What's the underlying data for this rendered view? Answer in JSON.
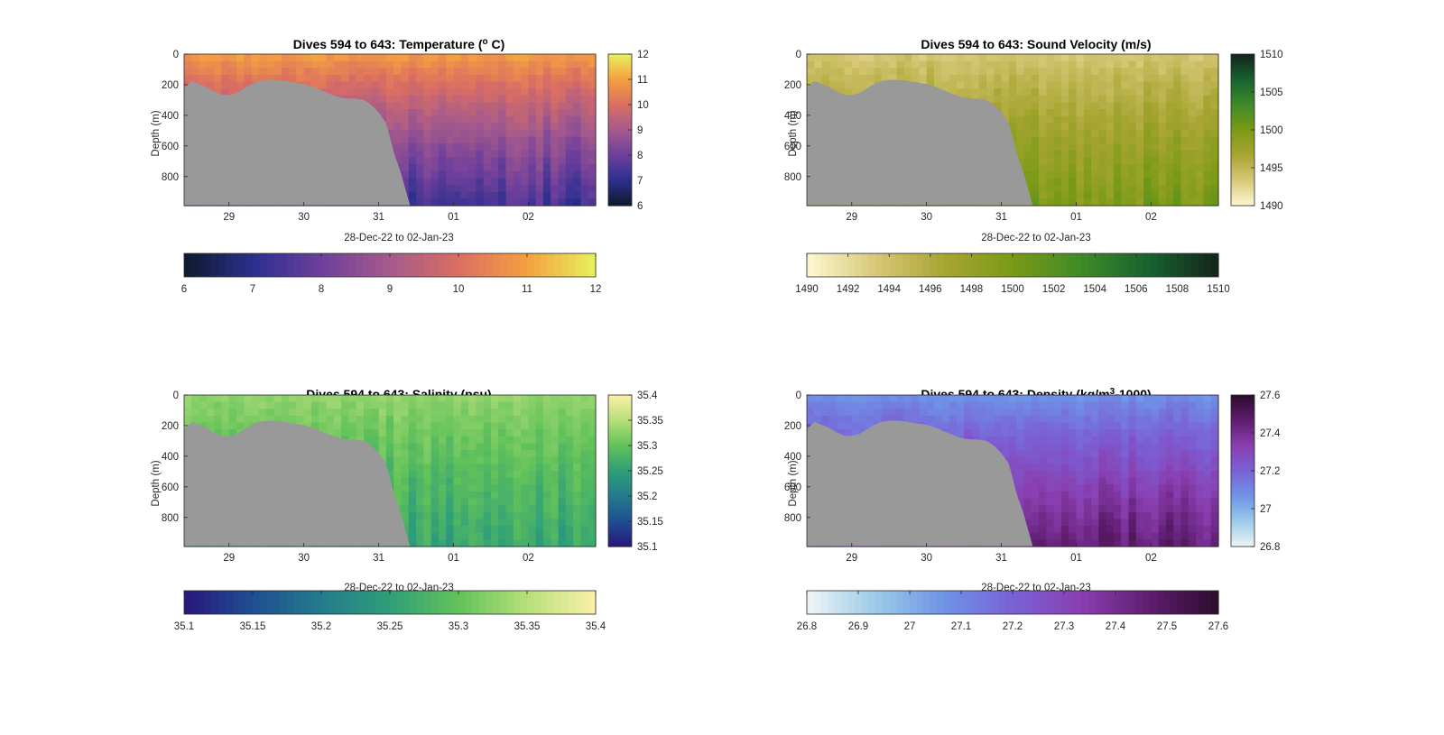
{
  "figure": {
    "colors": {
      "background": "#ffffff",
      "land_mask": "#999999",
      "axis": "#262626"
    }
  },
  "chart_data": [
    {
      "type": "heatmap",
      "title": "Dives 594 to 643: Temperature (",
      "title_sup": "o",
      "title_end": " C)",
      "xlabel": "28-Dec-22 to 02-Jan-23",
      "ylabel": "Depth (m)",
      "x_ticklabels": [
        "29",
        "30",
        "31",
        "01",
        "02"
      ],
      "x_tick_days": [
        29,
        30,
        31,
        32,
        33
      ],
      "xlim_days": [
        28.4,
        33.9
      ],
      "y_ticklabels": [
        "0",
        "200",
        "400",
        "600",
        "800"
      ],
      "y_ticks": [
        0,
        200,
        400,
        600,
        800
      ],
      "ylim": [
        0,
        990
      ],
      "y_reversed": true,
      "colorbar_side": {
        "ticklabels": [
          "12",
          "11",
          "10",
          "9",
          "8",
          "7",
          "6"
        ],
        "ticks": [
          12,
          11,
          10,
          9,
          8,
          7,
          6
        ],
        "range": [
          6,
          12
        ]
      },
      "colorbar_bottom": {
        "ticklabels": [
          "6",
          "7",
          "8",
          "9",
          "10",
          "11",
          "12"
        ],
        "ticks": [
          6,
          7,
          8,
          9,
          10,
          11,
          12
        ],
        "range": [
          6,
          12
        ]
      },
      "colormap": [
        "#0e1a2c",
        "#2b2f8e",
        "#6e3f9c",
        "#a55a8c",
        "#db6e62",
        "#f4a040",
        "#e6f25c"
      ],
      "surface_value": 11.0,
      "deep_value": 7.3,
      "field_description_only_in_script": false
    },
    {
      "type": "heatmap",
      "title": "Dives 594 to 643: Sound Velocity (m/s)",
      "title_sup": "",
      "title_end": "",
      "xlabel": "28-Dec-22 to 02-Jan-23",
      "ylabel": "Depth (m)",
      "x_ticklabels": [
        "29",
        "30",
        "31",
        "01",
        "02"
      ],
      "x_tick_days": [
        29,
        30,
        31,
        32,
        33
      ],
      "xlim_days": [
        28.4,
        33.9
      ],
      "y_ticklabels": [
        "0",
        "200",
        "400",
        "600",
        "800"
      ],
      "y_ticks": [
        0,
        200,
        400,
        600,
        800
      ],
      "ylim": [
        0,
        990
      ],
      "y_reversed": true,
      "colorbar_side": {
        "ticklabels": [
          "1510",
          "1505",
          "1500",
          "1495",
          "1490"
        ],
        "ticks": [
          1510,
          1505,
          1500,
          1495,
          1490
        ],
        "range": [
          1490,
          1510
        ]
      },
      "colorbar_bottom": {
        "ticklabels": [
          "1490",
          "1492",
          "1494",
          "1496",
          "1498",
          "1500",
          "1502",
          "1504",
          "1506",
          "1508",
          "1510"
        ],
        "ticks": [
          1490,
          1492,
          1494,
          1496,
          1498,
          1500,
          1502,
          1504,
          1506,
          1508,
          1510
        ],
        "range": [
          1490,
          1510
        ]
      },
      "colormap": [
        "#fdf8d2",
        "#d8c878",
        "#a8a532",
        "#7a9a16",
        "#3f8a28",
        "#17622f",
        "#14241a"
      ],
      "surface_value": 1493.5,
      "deep_value": 1499.8,
      "field_description_only_in_script": false
    },
    {
      "type": "heatmap",
      "title": "Dives 594 to 643: Salinity (psu)",
      "title_sup": "",
      "title_end": "",
      "xlabel": "28-Dec-22 to 02-Jan-23",
      "ylabel": "Depth (m)",
      "x_ticklabels": [
        "29",
        "30",
        "31",
        "01",
        "02"
      ],
      "x_tick_days": [
        29,
        30,
        31,
        32,
        33
      ],
      "xlim_days": [
        28.4,
        33.9
      ],
      "y_ticklabels": [
        "0",
        "200",
        "400",
        "600",
        "800"
      ],
      "y_ticks": [
        0,
        200,
        400,
        600,
        800
      ],
      "ylim": [
        0,
        990
      ],
      "y_reversed": true,
      "colorbar_side": {
        "ticklabels": [
          "35.4",
          "35.35",
          "35.3",
          "35.25",
          "35.2",
          "35.15",
          "35.1"
        ],
        "ticks": [
          35.4,
          35.35,
          35.3,
          35.25,
          35.2,
          35.15,
          35.1
        ],
        "range": [
          35.1,
          35.4
        ]
      },
      "colorbar_bottom": {
        "ticklabels": [
          "35.1",
          "35.15",
          "35.2",
          "35.25",
          "35.3",
          "35.35",
          "35.4"
        ],
        "ticks": [
          35.1,
          35.15,
          35.2,
          35.25,
          35.3,
          35.35,
          35.4
        ],
        "range": [
          35.1,
          35.4
        ]
      },
      "colormap": [
        "#29167a",
        "#1e4f92",
        "#247b8c",
        "#2f9f78",
        "#62c25a",
        "#b7df7a",
        "#fbf1a8"
      ],
      "surface_value": 35.33,
      "deep_value": 35.26,
      "field_description_only_in_script": false
    },
    {
      "type": "heatmap",
      "title": "Dives 594 to 643: Density (kg/m",
      "title_sup": "3",
      "title_end": "-1000)",
      "xlabel": "28-Dec-22 to 02-Jan-23",
      "ylabel": "Depth (m)",
      "x_ticklabels": [
        "29",
        "30",
        "31",
        "01",
        "02"
      ],
      "x_tick_days": [
        29,
        30,
        31,
        32,
        33
      ],
      "xlim_days": [
        28.4,
        33.9
      ],
      "y_ticklabels": [
        "0",
        "200",
        "400",
        "600",
        "800"
      ],
      "y_ticks": [
        0,
        200,
        400,
        600,
        800
      ],
      "ylim": [
        0,
        990
      ],
      "y_reversed": true,
      "colorbar_side": {
        "ticklabels": [
          "27.6",
          "27.4",
          "27.2",
          "27",
          "26.8"
        ],
        "ticks": [
          27.6,
          27.4,
          27.2,
          27.0,
          26.8
        ],
        "range": [
          26.8,
          27.6
        ]
      },
      "colorbar_bottom": {
        "ticklabels": [
          "26.8",
          "26.9",
          "27",
          "27.1",
          "27.2",
          "27.3",
          "27.4",
          "27.5",
          "27.6"
        ],
        "ticks": [
          26.8,
          26.9,
          27.0,
          27.1,
          27.2,
          27.3,
          27.4,
          27.5,
          27.6
        ],
        "range": [
          26.8,
          27.6
        ]
      },
      "colormap": [
        "#eef5f6",
        "#9ccbe8",
        "#6e93e6",
        "#7a62d6",
        "#8a3eb0",
        "#5e1d6e",
        "#2d0c2c"
      ],
      "surface_value": 27.06,
      "deep_value": 27.45,
      "field_description_only_in_script": false
    }
  ],
  "seafloor_depth_m": [
    {
      "day": 28.4,
      "depth": 222
    },
    {
      "day": 28.5,
      "depth": 175
    },
    {
      "day": 28.6,
      "depth": 195
    },
    {
      "day": 28.7,
      "depth": 215
    },
    {
      "day": 28.8,
      "depth": 245
    },
    {
      "day": 28.9,
      "depth": 265
    },
    {
      "day": 29.0,
      "depth": 268
    },
    {
      "day": 29.1,
      "depth": 255
    },
    {
      "day": 29.2,
      "depth": 225
    },
    {
      "day": 29.3,
      "depth": 195
    },
    {
      "day": 29.4,
      "depth": 175
    },
    {
      "day": 29.5,
      "depth": 168
    },
    {
      "day": 29.6,
      "depth": 168
    },
    {
      "day": 29.7,
      "depth": 172
    },
    {
      "day": 29.8,
      "depth": 180
    },
    {
      "day": 29.9,
      "depth": 188
    },
    {
      "day": 30.0,
      "depth": 195
    },
    {
      "day": 30.1,
      "depth": 210
    },
    {
      "day": 30.2,
      "depth": 230
    },
    {
      "day": 30.3,
      "depth": 250
    },
    {
      "day": 30.4,
      "depth": 270
    },
    {
      "day": 30.5,
      "depth": 285
    },
    {
      "day": 30.6,
      "depth": 290
    },
    {
      "day": 30.7,
      "depth": 292
    },
    {
      "day": 30.8,
      "depth": 300
    },
    {
      "day": 30.9,
      "depth": 330
    },
    {
      "day": 31.0,
      "depth": 380
    },
    {
      "day": 31.1,
      "depth": 450
    },
    {
      "day": 31.15,
      "depth": 540
    },
    {
      "day": 31.2,
      "depth": 640
    },
    {
      "day": 31.3,
      "depth": 780
    },
    {
      "day": 31.42,
      "depth": 990
    }
  ]
}
